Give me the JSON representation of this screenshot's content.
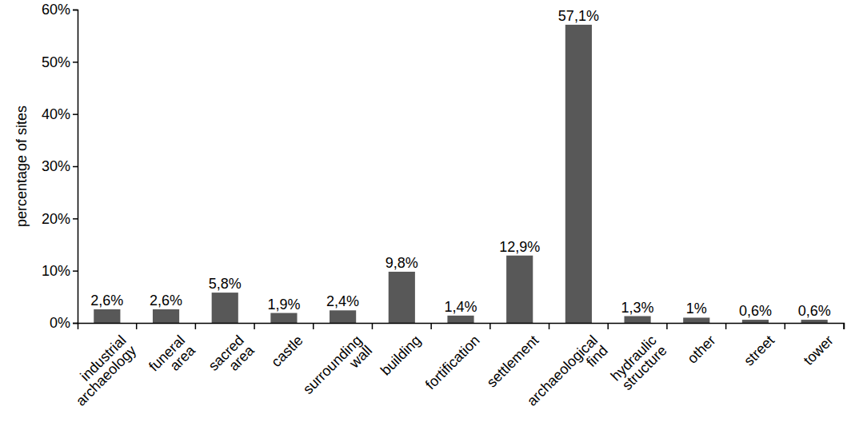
{
  "chart_data": {
    "type": "bar",
    "y_label": "percentage of sites",
    "categories": [
      "industrial archaeology",
      "funeral area",
      "sacred area",
      "castle",
      "surrounding wall",
      "building",
      "fortification",
      "settlement",
      "archaeological find",
      "hydraulic structure",
      "other",
      "street",
      "tower"
    ],
    "values": [
      2.6,
      2.6,
      5.8,
      1.9,
      2.4,
      9.8,
      1.4,
      12.9,
      57.1,
      1.3,
      1,
      0.6,
      0.6
    ],
    "value_labels": [
      "2,6%",
      "2,6%",
      "5,8%",
      "1,9%",
      "2,4%",
      "9,8%",
      "1,4%",
      "12,9%",
      "57,1%",
      "1,3%",
      "1%",
      "0,6%",
      "0,6%"
    ],
    "data_labels": true,
    "color": "#585858",
    "ylim": [
      0,
      60
    ],
    "yticks": [
      {
        "value": 0,
        "label": "0%"
      },
      {
        "value": 10,
        "label": "10%"
      },
      {
        "value": 20,
        "label": "20%"
      },
      {
        "value": 30,
        "label": "30%"
      },
      {
        "value": 40,
        "label": "40%"
      },
      {
        "value": 50,
        "label": "50%"
      },
      {
        "value": 60,
        "label": "60%"
      }
    ],
    "grid": false
  }
}
